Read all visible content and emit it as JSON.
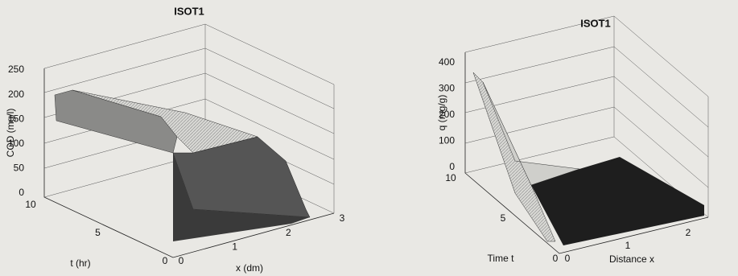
{
  "panels": [
    {
      "title": "ISOT1",
      "z_label": "COD (mg/l)",
      "t_label": "t (hr)",
      "x_label": "x (dm)",
      "z_ticks": [
        0,
        50,
        100,
        150,
        200,
        250
      ],
      "t_ticks": [
        0,
        5,
        10
      ],
      "x_ticks": [
        0,
        1,
        2,
        3
      ]
    },
    {
      "title": "ISOT1",
      "z_label": "q (mg/g)",
      "t_label": "Time t",
      "x_label": "Distance x",
      "z_ticks": [
        0,
        100,
        200,
        300,
        400
      ],
      "t_ticks": [
        0,
        5,
        10
      ],
      "x_ticks": [
        0,
        1,
        2
      ]
    }
  ]
}
